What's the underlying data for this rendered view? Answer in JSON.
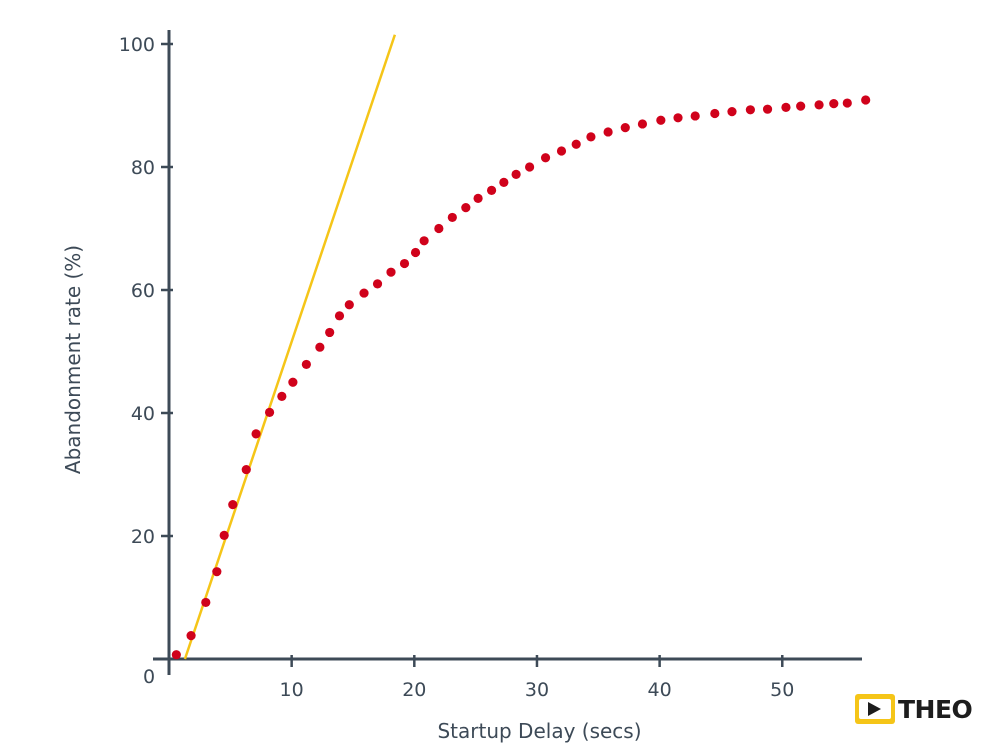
{
  "chart_data": {
    "type": "scatter",
    "title": "",
    "xlabel": "Startup Delay (secs)",
    "ylabel": "Abandonment rate (%)",
    "xlim": [
      0,
      56.5
    ],
    "ylim": [
      0,
      100
    ],
    "x_ticks": [
      10,
      20,
      30,
      40,
      50
    ],
    "x_tick_labels": [
      "10",
      "20",
      "30",
      "40",
      "50"
    ],
    "y_ticks": [
      20,
      40,
      60,
      80,
      100
    ],
    "y_tick_labels": [
      "20",
      "40",
      "60",
      "80",
      "100"
    ],
    "origin_label": "0",
    "grid": false,
    "series": [
      {
        "kind": "scatter",
        "color": "#d0021b",
        "points": [
          [
            0.6,
            0.7
          ],
          [
            1.8,
            3.8
          ],
          [
            3.0,
            9.2
          ],
          [
            3.9,
            14.2
          ],
          [
            4.5,
            20.1
          ],
          [
            5.2,
            25.1
          ],
          [
            6.3,
            30.8
          ],
          [
            7.1,
            36.6
          ],
          [
            8.2,
            40.1
          ],
          [
            9.2,
            42.7
          ],
          [
            10.1,
            45.0
          ],
          [
            11.2,
            47.9
          ],
          [
            12.3,
            50.7
          ],
          [
            13.1,
            53.1
          ],
          [
            13.9,
            55.8
          ],
          [
            14.7,
            57.6
          ],
          [
            15.9,
            59.5
          ],
          [
            17.0,
            61.0
          ],
          [
            18.1,
            62.9
          ],
          [
            19.2,
            64.3
          ],
          [
            20.1,
            66.1
          ],
          [
            20.8,
            68.0
          ],
          [
            22.0,
            70.0
          ],
          [
            23.1,
            71.8
          ],
          [
            24.2,
            73.4
          ],
          [
            25.2,
            74.9
          ],
          [
            26.3,
            76.2
          ],
          [
            27.3,
            77.5
          ],
          [
            28.3,
            78.8
          ],
          [
            29.4,
            80.0
          ],
          [
            30.7,
            81.5
          ],
          [
            32.0,
            82.6
          ],
          [
            33.2,
            83.7
          ],
          [
            34.4,
            84.9
          ],
          [
            35.8,
            85.7
          ],
          [
            37.2,
            86.4
          ],
          [
            38.6,
            87.0
          ],
          [
            40.1,
            87.6
          ],
          [
            41.5,
            88.0
          ],
          [
            42.9,
            88.3
          ],
          [
            44.5,
            88.7
          ],
          [
            45.9,
            89.0
          ],
          [
            47.4,
            89.3
          ],
          [
            48.8,
            89.4
          ],
          [
            50.3,
            89.7
          ],
          [
            51.5,
            89.9
          ],
          [
            53.0,
            90.1
          ],
          [
            54.2,
            90.3
          ],
          [
            55.3,
            90.4
          ],
          [
            56.8,
            90.9
          ]
        ]
      },
      {
        "kind": "line",
        "color": "#f5c518",
        "points": [
          [
            1.3,
            0
          ],
          [
            18.5,
            102
          ]
        ]
      }
    ]
  },
  "logo": {
    "text": "THEO",
    "mark_color": "#f5c518",
    "play_color": "#1d1d1d"
  }
}
